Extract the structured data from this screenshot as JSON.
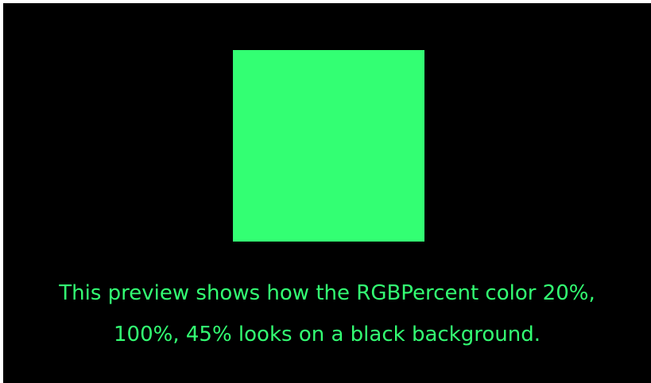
{
  "preview": {
    "swatch_color": "#33ff73",
    "text_color": "#33ff73",
    "background_color": "#000000",
    "caption_lines": [
      "This preview shows how the RGBPercent color 20%,",
      "100%, 45% looks on a black background."
    ]
  }
}
